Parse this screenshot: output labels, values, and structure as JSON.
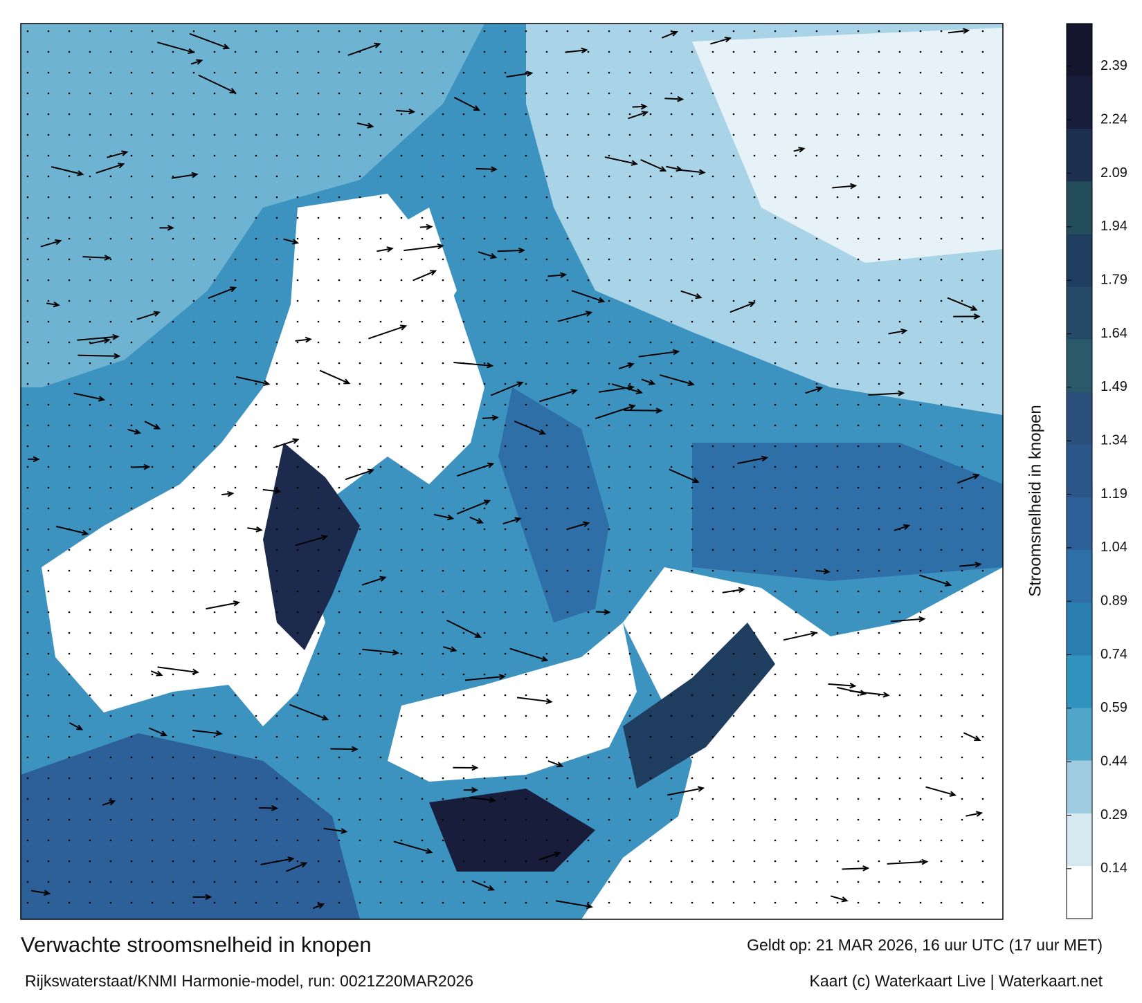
{
  "title": "Verwachte stroomsnelheid in knopen",
  "valid_time": "Geldt op: 21 MAR 2026, 16 uur UTC (17 uur MET)",
  "source": "Rijkswaterstaat/KNMI Harmonie-model, run: 0021Z20MAR2026",
  "credit": "Kaart (c) Waterkaart Live | Waterkaart.net",
  "colorbar": {
    "label": "Stroomsnelheid in knopen",
    "lim": [
      0,
      2.51
    ],
    "ticks": [
      0.14,
      0.29,
      0.44,
      0.59,
      0.74,
      0.89,
      1.04,
      1.19,
      1.34,
      1.49,
      1.64,
      1.79,
      1.94,
      2.09,
      2.24,
      2.39
    ],
    "colors": [
      "#ffffff",
      "#d6e8f0",
      "#9fcce0",
      "#4fa6c8",
      "#2f93bd",
      "#2a7fb0",
      "#2f6fa8",
      "#2d5f98",
      "#2b568a",
      "#2a4f7a",
      "#2a5a6a",
      "#244a68",
      "#1f3d5e",
      "#234d5a",
      "#1c2f4e",
      "#171d3a",
      "#14162e"
    ]
  }
}
